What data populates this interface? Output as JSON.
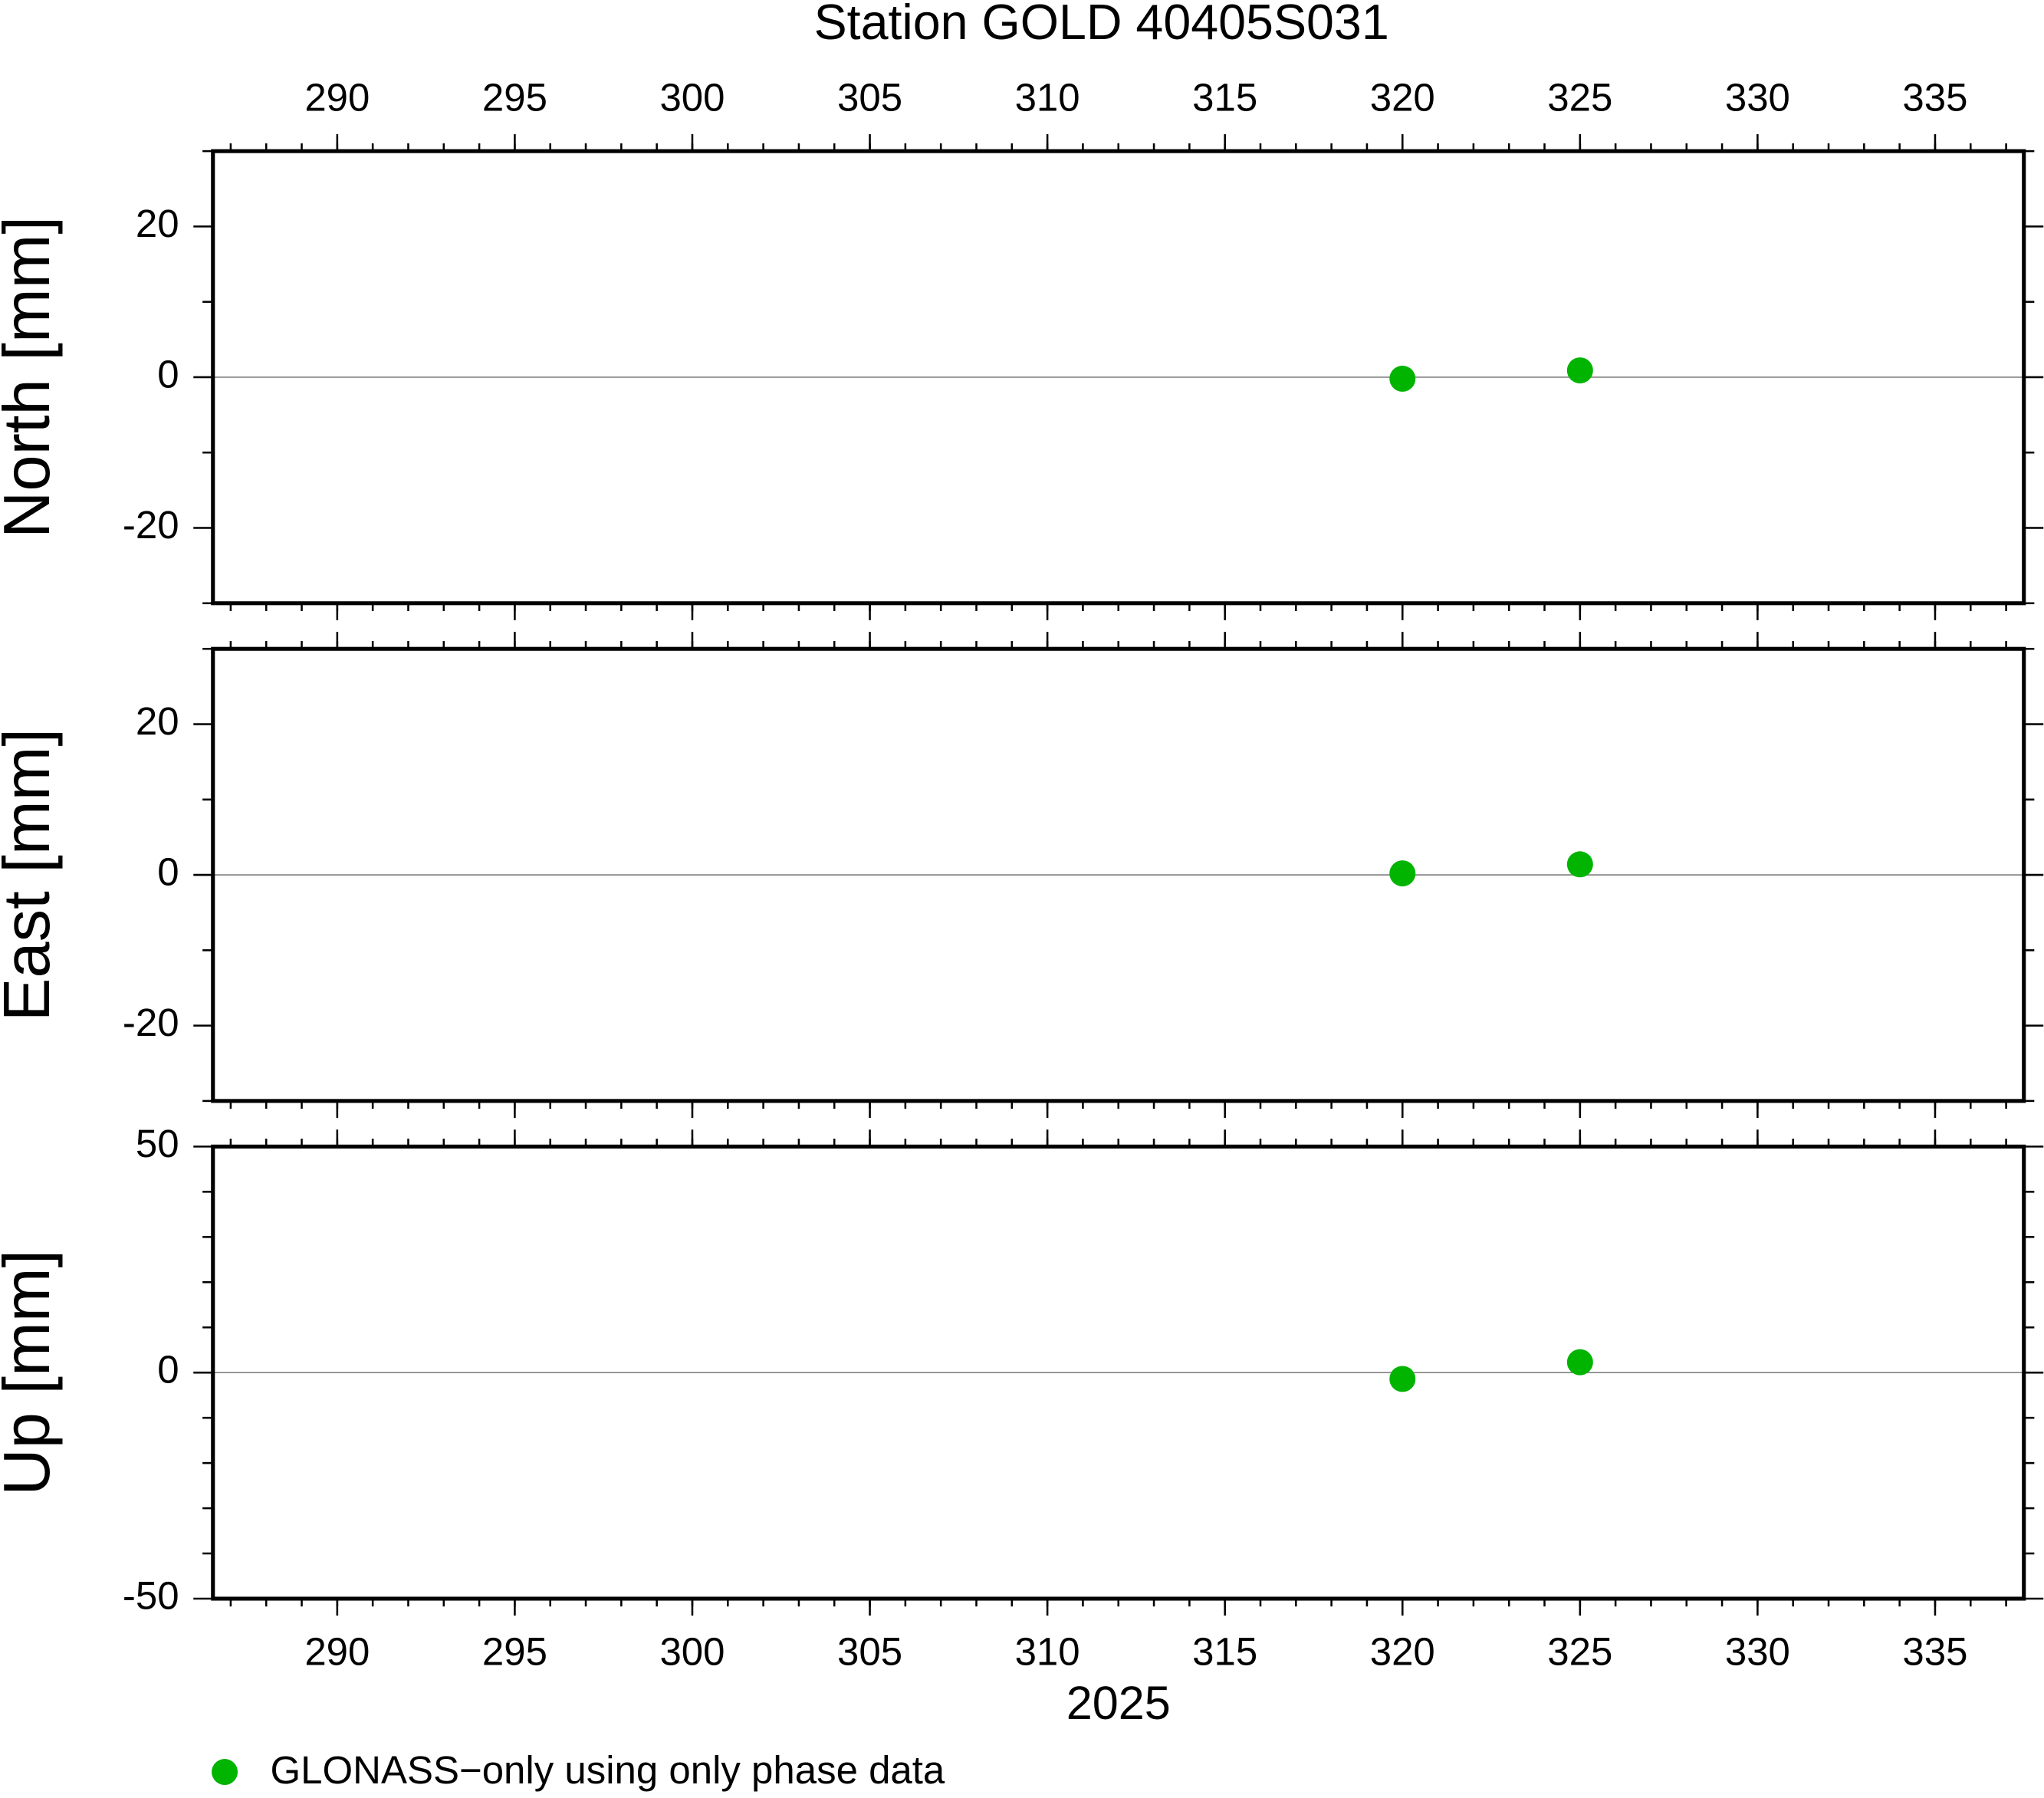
{
  "chart_data": [
    {
      "type": "scatter",
      "title": "Station GOLD 40405S031",
      "ylabel": "North [mm]",
      "xlim": [
        286.5,
        337.5
      ],
      "xticks": [
        290,
        295,
        300,
        305,
        310,
        315,
        320,
        325,
        330,
        335
      ],
      "ylim": [
        -30,
        30
      ],
      "yticks": [
        -20,
        0,
        20
      ],
      "minor_yticks": [
        -30,
        -10,
        10,
        30
      ],
      "zero_line": true,
      "series": [
        {
          "color": "#00b400",
          "x": [
            320,
            325
          ],
          "values": [
            -0.2,
            0.9
          ]
        }
      ]
    },
    {
      "type": "scatter",
      "ylabel": "East [mm]",
      "xlim": [
        286.5,
        337.5
      ],
      "xticks": [
        290,
        295,
        300,
        305,
        310,
        315,
        320,
        325,
        330,
        335
      ],
      "ylim": [
        -30,
        30
      ],
      "yticks": [
        -20,
        0,
        20
      ],
      "minor_yticks": [
        -30,
        -10,
        10,
        30
      ],
      "zero_line": true,
      "series": [
        {
          "color": "#00b400",
          "x": [
            320,
            325
          ],
          "values": [
            0.2,
            1.4
          ]
        }
      ]
    },
    {
      "type": "scatter",
      "ylabel": "Up [mm]",
      "xlabel": "2025",
      "xlim": [
        286.5,
        337.5
      ],
      "xticks": [
        290,
        295,
        300,
        305,
        310,
        315,
        320,
        325,
        330,
        335
      ],
      "ylim": [
        -50,
        50
      ],
      "yticks": [
        -50,
        0,
        50
      ],
      "minor_yticks": [
        -40,
        -30,
        -20,
        -10,
        10,
        20,
        30,
        40
      ],
      "zero_line": true,
      "series": [
        {
          "name": "GLONASS−only using only phase data",
          "color": "#00b400",
          "x": [
            320,
            325
          ],
          "values": [
            -1.4,
            2.3
          ]
        }
      ]
    }
  ]
}
